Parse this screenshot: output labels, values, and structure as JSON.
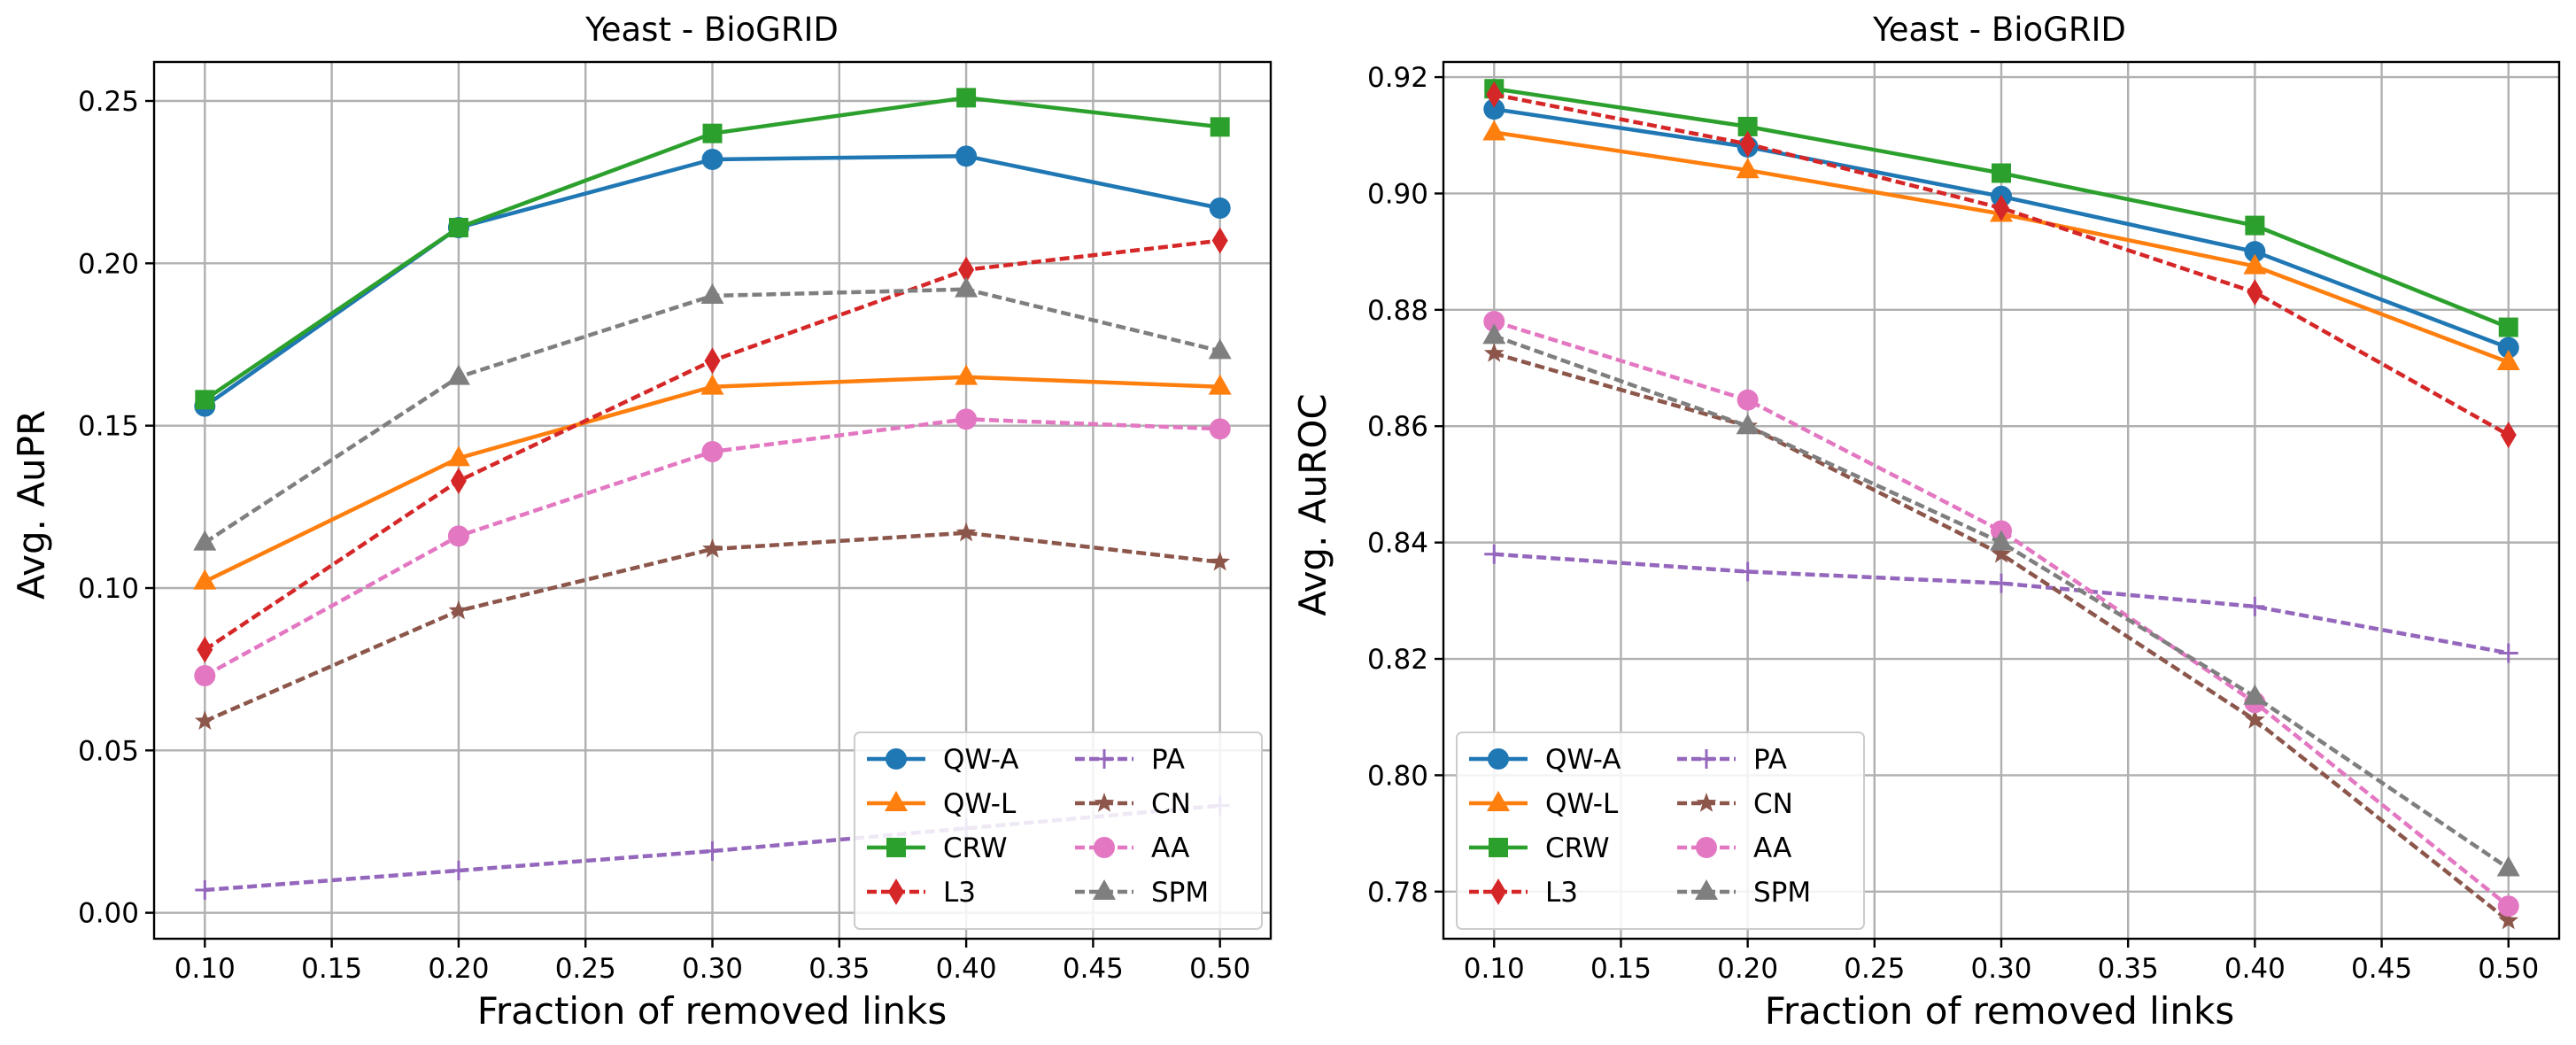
{
  "chart_data": [
    {
      "type": "line",
      "title": "Yeast - BioGRID",
      "xlabel": "Fraction of removed links",
      "ylabel": "Avg. AuPR",
      "xlim": [
        0.08,
        0.52
      ],
      "ylim": [
        -0.008,
        0.262
      ],
      "xticks": [
        "0.10",
        "0.15",
        "0.20",
        "0.25",
        "0.30",
        "0.35",
        "0.40",
        "0.45",
        "0.50"
      ],
      "yticks": [
        "0.00",
        "0.05",
        "0.10",
        "0.15",
        "0.20",
        "0.25"
      ],
      "grid": true,
      "legend_location": "lower right",
      "x": [
        0.1,
        0.2,
        0.3,
        0.4,
        0.5
      ],
      "series": [
        {
          "name": "QW-A",
          "values": [
            0.156,
            0.211,
            0.232,
            0.233,
            0.217
          ],
          "color": "#1f77b4",
          "dash": "solid",
          "marker": "circle"
        },
        {
          "name": "QW-L",
          "values": [
            0.102,
            0.14,
            0.162,
            0.165,
            0.162
          ],
          "color": "#ff7f0e",
          "dash": "solid",
          "marker": "triangle"
        },
        {
          "name": "CRW",
          "values": [
            0.158,
            0.211,
            0.24,
            0.251,
            0.242
          ],
          "color": "#2ca02c",
          "dash": "solid",
          "marker": "square"
        },
        {
          "name": "L3",
          "values": [
            0.081,
            0.133,
            0.17,
            0.198,
            0.207
          ],
          "color": "#d62728",
          "dash": "dashed",
          "marker": "diamond"
        },
        {
          "name": "PA",
          "values": [
            0.007,
            0.013,
            0.019,
            0.026,
            0.033
          ],
          "color": "#9467bd",
          "dash": "dashed",
          "marker": "plus"
        },
        {
          "name": "CN",
          "values": [
            0.059,
            0.093,
            0.112,
            0.117,
            0.108
          ],
          "color": "#8c564b",
          "dash": "dashed",
          "marker": "star"
        },
        {
          "name": "AA",
          "values": [
            0.073,
            0.116,
            0.142,
            0.152,
            0.149
          ],
          "color": "#e377c2",
          "dash": "dashed",
          "marker": "circle"
        },
        {
          "name": "SPM",
          "values": [
            0.114,
            0.165,
            0.19,
            0.192,
            0.173
          ],
          "color": "#7f7f7f",
          "dash": "dashed",
          "marker": "triangle"
        }
      ]
    },
    {
      "type": "line",
      "title": "Yeast - BioGRID",
      "xlabel": "Fraction of removed links",
      "ylabel": "Avg. AuROC",
      "xlim": [
        0.08,
        0.52
      ],
      "ylim": [
        0.7719,
        0.9226
      ],
      "xticks": [
        "0.10",
        "0.15",
        "0.20",
        "0.25",
        "0.30",
        "0.35",
        "0.40",
        "0.45",
        "0.50"
      ],
      "yticks": [
        "0.78",
        "0.80",
        "0.82",
        "0.84",
        "0.86",
        "0.88",
        "0.90",
        "0.92"
      ],
      "grid": true,
      "legend_location": "lower left",
      "x": [
        0.1,
        0.2,
        0.3,
        0.4,
        0.5
      ],
      "series": [
        {
          "name": "QW-A",
          "values": [
            0.9145,
            0.908,
            0.8995,
            0.89,
            0.8735
          ],
          "color": "#1f77b4",
          "dash": "solid",
          "marker": "circle"
        },
        {
          "name": "QW-L",
          "values": [
            0.9105,
            0.904,
            0.8965,
            0.8875,
            0.871
          ],
          "color": "#ff7f0e",
          "dash": "solid",
          "marker": "triangle"
        },
        {
          "name": "CRW",
          "values": [
            0.918,
            0.9115,
            0.9035,
            0.8945,
            0.877
          ],
          "color": "#2ca02c",
          "dash": "solid",
          "marker": "square"
        },
        {
          "name": "L3",
          "values": [
            0.917,
            0.9085,
            0.8975,
            0.883,
            0.8585
          ],
          "color": "#d62728",
          "dash": "dashed",
          "marker": "diamond"
        },
        {
          "name": "PA",
          "values": [
            0.838,
            0.835,
            0.833,
            0.829,
            0.821
          ],
          "color": "#9467bd",
          "dash": "dashed",
          "marker": "plus"
        },
        {
          "name": "CN",
          "values": [
            0.8725,
            0.86,
            0.838,
            0.8095,
            0.775
          ],
          "color": "#8c564b",
          "dash": "dashed",
          "marker": "star"
        },
        {
          "name": "AA",
          "values": [
            0.878,
            0.8645,
            0.842,
            0.8125,
            0.7775
          ],
          "color": "#e377c2",
          "dash": "dashed",
          "marker": "circle"
        },
        {
          "name": "SPM",
          "values": [
            0.8755,
            0.86,
            0.84,
            0.8135,
            0.784
          ],
          "color": "#7f7f7f",
          "dash": "dashed",
          "marker": "triangle"
        }
      ]
    }
  ]
}
